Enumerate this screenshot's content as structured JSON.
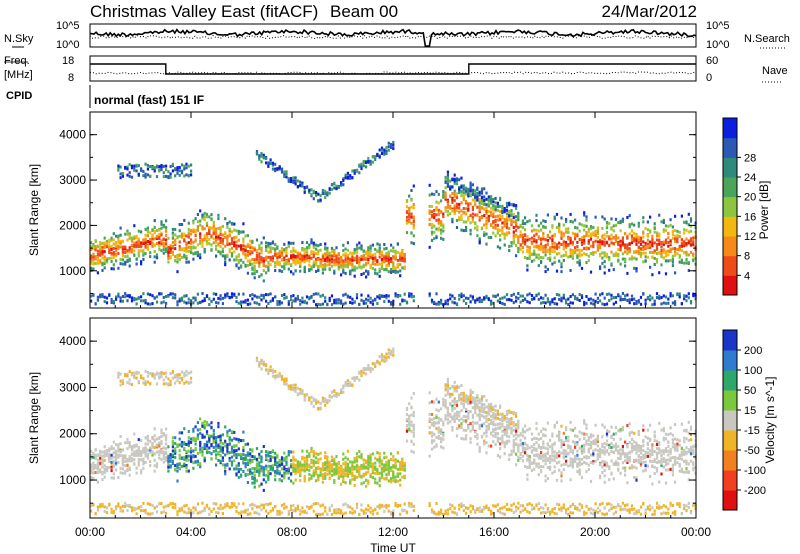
{
  "header": {
    "title": "Christmas Valley East (fitACF)",
    "beam": "Beam 00",
    "date": "24/Mar/2012"
  },
  "noise_panel": {
    "left_label": "N.Sky",
    "right_label": "N.Search",
    "left_ticks": [
      "10^5",
      "10^0"
    ],
    "right_ticks": [
      "10^5",
      "10^0"
    ]
  },
  "freq_panel": {
    "left_label_1": "Freq.",
    "left_label_2": "[MHz]",
    "right_label": "Nave",
    "left_ticks": [
      "18",
      "8"
    ],
    "right_ticks": [
      "60",
      "0"
    ]
  },
  "cpid": {
    "label": "CPID",
    "text": "normal (fast) 151 IF"
  },
  "chart_data": [
    {
      "type": "heatmap",
      "name": "Power",
      "ylabel": "Slant Range [km]",
      "xlabel": "",
      "y_ticks": [
        1000,
        2000,
        3000,
        4000
      ],
      "ylim": [
        180,
        4500
      ],
      "xlim_hours": [
        0,
        24
      ],
      "colorbar": {
        "label": "Power [dB]",
        "ticks": [
          "4",
          "8",
          "12",
          "16",
          "20",
          "24",
          "28"
        ],
        "colors": [
          "#0a1fe0",
          "#2a5ab4",
          "#2e8a7a",
          "#4aa55a",
          "#8cc63e",
          "#f2b80f",
          "#f58a18",
          "#ef4b1a",
          "#e01010"
        ]
      }
    },
    {
      "type": "heatmap",
      "name": "Velocity",
      "ylabel": "Slant Range [km]",
      "xlabel": "Time UT",
      "y_ticks": [
        1000,
        2000,
        3000,
        4000
      ],
      "ylim": [
        180,
        4500
      ],
      "xlim_hours": [
        0,
        24
      ],
      "x_tick_labels": [
        "00:00",
        "04:00",
        "08:00",
        "12:00",
        "16:00",
        "20:00",
        "00:00"
      ],
      "colorbar": {
        "label": "Velocity [m s^-1]",
        "ticks": [
          "200",
          "100",
          "50",
          "15",
          "-15",
          "-50",
          "-100",
          "-200"
        ],
        "colors": [
          "#1a35c8",
          "#2e7bd0",
          "#2ea86a",
          "#7cc83c",
          "#c8c8c0",
          "#f0b428",
          "#f08020",
          "#f04020",
          "#e01010"
        ]
      }
    }
  ],
  "colors": {
    "grey_scatter": "#c8c8c0",
    "frame": "#000000"
  }
}
